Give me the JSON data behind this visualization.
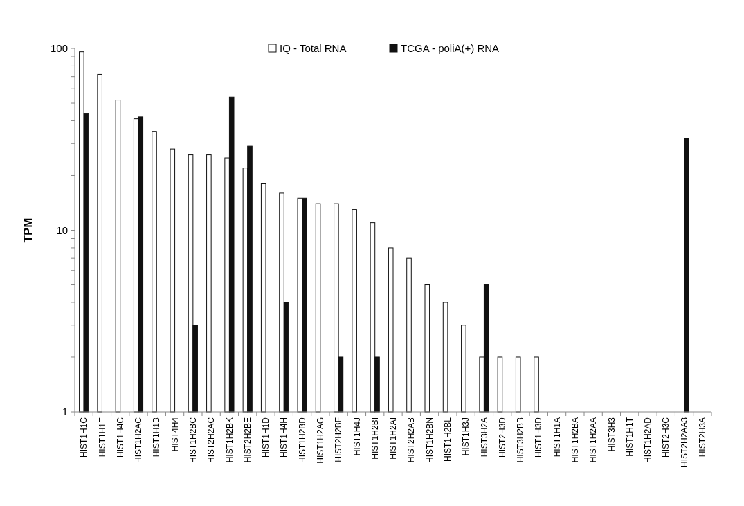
{
  "chart_data": {
    "type": "bar",
    "ylabel": "TPM",
    "log": true,
    "ylim": [
      1,
      100
    ],
    "yticks": [
      1,
      {
        "value": 2,
        "label": null
      },
      {
        "value": 3,
        "label": null
      },
      {
        "value": 4,
        "label": null
      },
      {
        "value": 5,
        "label": null
      },
      {
        "value": 6,
        "label": null
      },
      {
        "value": 7,
        "label": null
      },
      {
        "value": 8,
        "label": null
      },
      {
        "value": 9,
        "label": null
      },
      10,
      {
        "value": 20,
        "label": null
      },
      {
        "value": 30,
        "label": null
      },
      {
        "value": 40,
        "label": null
      },
      {
        "value": 50,
        "label": null
      },
      {
        "value": 60,
        "label": null
      },
      {
        "value": 70,
        "label": null
      },
      {
        "value": 80,
        "label": null
      },
      {
        "value": 90,
        "label": null
      },
      100
    ],
    "grid": false,
    "legend": "top",
    "categories": [
      "HIST1H1C",
      "HIST1H1E",
      "HIST1H4C",
      "HIST1H2AC",
      "HIST1H1B",
      "HIST4H4",
      "HIST1H2BC",
      "HIST2H2AC",
      "HIST1H2BK",
      "HIST2H2BE",
      "HIST1H1D",
      "HIST1H4H",
      "HIST1H2BD",
      "HIST1H2AG",
      "HIST2H2BF",
      "HIST1H4J",
      "HIST1H2BI",
      "HIST1H2AI",
      "HIST2H2AB",
      "HIST1H2BN",
      "HIST1H2BL",
      "HIST1H3J",
      "HIST3H2A",
      "HIST2H3D",
      "HIST3H2BB",
      "HIST1H3D",
      "HIST1H1A",
      "HIST1H2BA",
      "HIST1H2AA",
      "HIST3H3",
      "HIST1H1T",
      "HIST1H2AD",
      "HIST2H3C",
      "HIST2H2AA3",
      "HIST2H3A"
    ],
    "series": [
      {
        "name": "IQ - Total RNA",
        "color": "#ffffff",
        "values": [
          96,
          72,
          52,
          41,
          35,
          28,
          26,
          26,
          25,
          22,
          18,
          16,
          15,
          14,
          14,
          13,
          11,
          8,
          7,
          5,
          4,
          3,
          2,
          2,
          2,
          2,
          null,
          null,
          null,
          null,
          null,
          null,
          null,
          null,
          null
        ]
      },
      {
        "name": "TCGA - poliA(+) RNA",
        "color": "#111111",
        "values": [
          44,
          null,
          null,
          42,
          null,
          null,
          3,
          null,
          54,
          29,
          null,
          4,
          15,
          null,
          2,
          null,
          2,
          null,
          null,
          null,
          null,
          null,
          5,
          null,
          null,
          null,
          null,
          null,
          null,
          null,
          null,
          null,
          null,
          32,
          null
        ]
      }
    ]
  }
}
